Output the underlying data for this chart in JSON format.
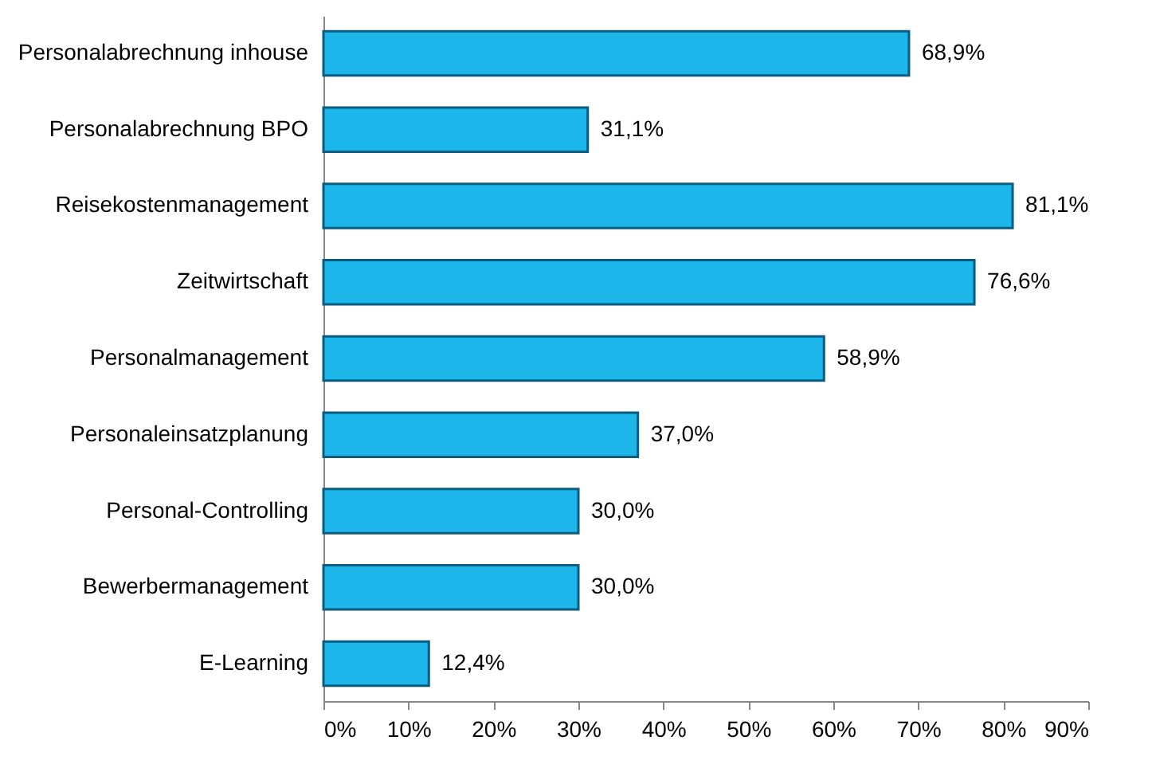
{
  "chart_data": {
    "type": "bar",
    "orientation": "horizontal",
    "categories": [
      "Personalabrechnung inhouse",
      "Personalabrechnung BPO",
      "Reisekostenmanagement",
      "Zeitwirtschaft",
      "Personalmanagement",
      "Personaleinsatzplanung",
      "Personal-Controlling",
      "Bewerbermanagement",
      "E-Learning"
    ],
    "values": [
      68.9,
      31.1,
      81.1,
      76.6,
      58.9,
      37.0,
      30.0,
      30.0,
      12.4
    ],
    "value_labels": [
      "68,9%",
      "31,1%",
      "81,1%",
      "76,6%",
      "58,9%",
      "37,0%",
      "30,0%",
      "30,0%",
      "12,4%"
    ],
    "color": "#1cb6ea",
    "xlim": [
      0,
      90
    ],
    "xticks": [
      {
        "value": 0,
        "label": "0%"
      },
      {
        "value": 10,
        "label": "10%"
      },
      {
        "value": 20,
        "label": "20%"
      },
      {
        "value": 30,
        "label": "30%"
      },
      {
        "value": 40,
        "label": "40%"
      },
      {
        "value": 50,
        "label": "50%"
      },
      {
        "value": 60,
        "label": "60%"
      },
      {
        "value": 70,
        "label": "70%"
      },
      {
        "value": 80,
        "label": "80%"
      },
      {
        "value": 90,
        "label": "90%"
      }
    ],
    "grid": false
  }
}
